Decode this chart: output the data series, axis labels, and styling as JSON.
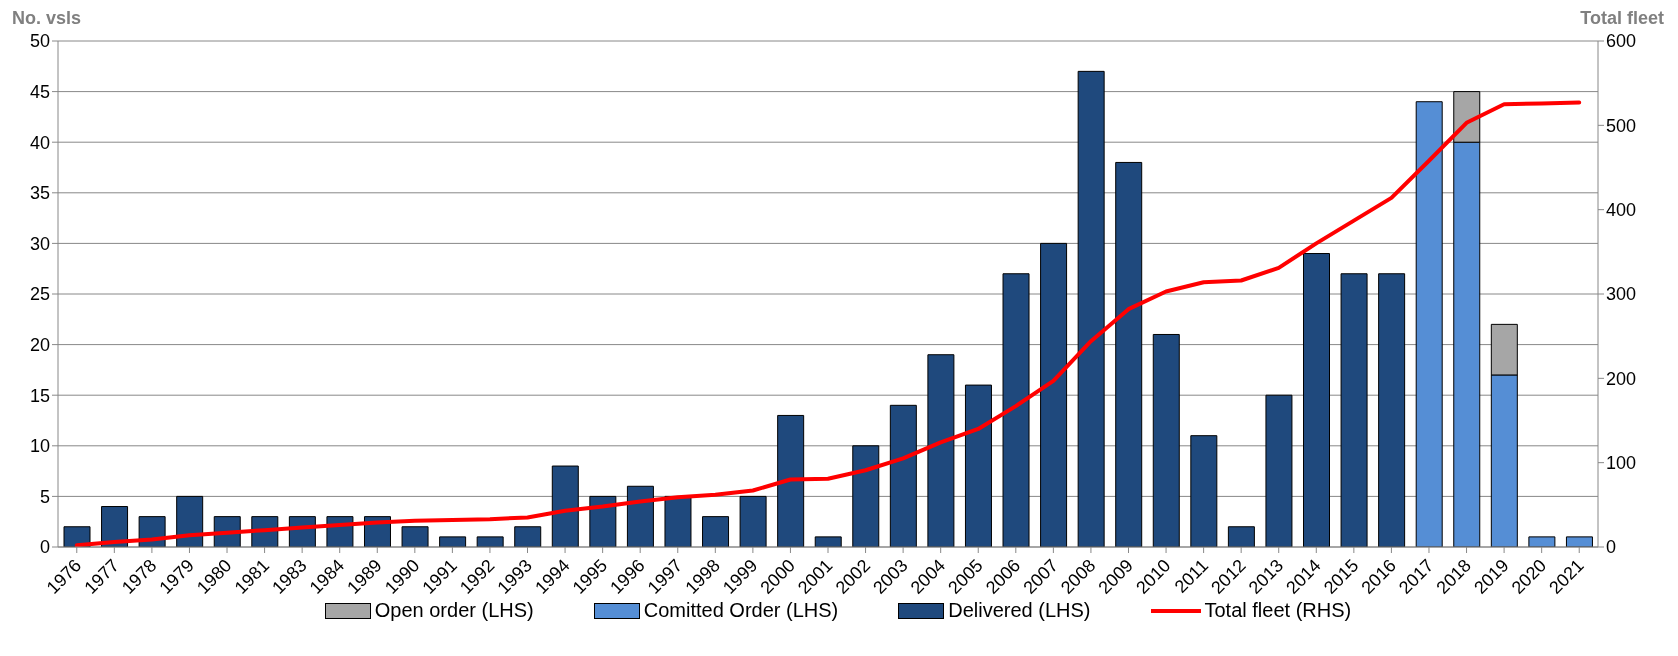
{
  "chart_data": {
    "type": "bar",
    "stacked": true,
    "ylabel": "No. vsls",
    "y2label": "Total fleet",
    "categories": [
      "1976",
      "1977",
      "1978",
      "1979",
      "1980",
      "1981",
      "1983",
      "1984",
      "1989",
      "1990",
      "1991",
      "1992",
      "1993",
      "1994",
      "1995",
      "1996",
      "1997",
      "1998",
      "1999",
      "2000",
      "2001",
      "2002",
      "2003",
      "2004",
      "2005",
      "2006",
      "2007",
      "2008",
      "2009",
      "2010",
      "2011",
      "2012",
      "2013",
      "2014",
      "2015",
      "2016",
      "2017",
      "2018",
      "2019",
      "2020",
      "2021"
    ],
    "series": [
      {
        "name": "Delivered (LHS)",
        "color": "#1f497d",
        "values": [
          2,
          4,
          3,
          5,
          3,
          3,
          3,
          3,
          3,
          2,
          1,
          1,
          2,
          8,
          5,
          6,
          5,
          3,
          5,
          13,
          1,
          10,
          14,
          19,
          16,
          27,
          30,
          47,
          38,
          21,
          11,
          2,
          15,
          29,
          27,
          27,
          null,
          null,
          null,
          null,
          null
        ]
      },
      {
        "name": "Comitted Order (LHS)",
        "color": "#558ed5",
        "values": [
          null,
          null,
          null,
          null,
          null,
          null,
          null,
          null,
          null,
          null,
          null,
          null,
          null,
          null,
          null,
          null,
          null,
          null,
          null,
          null,
          null,
          null,
          null,
          null,
          null,
          null,
          null,
          null,
          null,
          null,
          null,
          null,
          null,
          null,
          null,
          null,
          44,
          40,
          17,
          1,
          1
        ]
      },
      {
        "name": "Open order (LHS)",
        "color": "#a6a6a6",
        "values": [
          null,
          null,
          null,
          null,
          null,
          null,
          null,
          null,
          null,
          null,
          null,
          null,
          null,
          null,
          null,
          null,
          null,
          null,
          null,
          null,
          null,
          null,
          null,
          null,
          null,
          null,
          null,
          null,
          null,
          null,
          null,
          null,
          null,
          null,
          null,
          null,
          null,
          5,
          5,
          null,
          null
        ]
      },
      {
        "name": "Total fleet  (RHS)",
        "type": "line",
        "axis": "y2",
        "color": "#ff0000",
        "values": [
          2,
          6,
          9,
          14,
          17,
          20,
          23,
          26,
          29,
          31,
          32,
          33,
          35,
          43,
          48,
          54,
          59,
          62,
          67,
          80,
          81,
          91,
          105,
          124,
          140,
          167,
          197,
          244,
          282,
          303,
          314,
          316,
          331,
          360,
          387,
          414,
          458,
          503,
          525,
          526,
          527
        ]
      }
    ],
    "ylim": [
      0,
      50
    ],
    "yticks": [
      0,
      5,
      10,
      15,
      20,
      25,
      30,
      35,
      40,
      45,
      50
    ],
    "y2lim": [
      0,
      600
    ],
    "y2ticks": [
      0,
      100,
      200,
      300,
      400,
      500,
      600
    ],
    "grid": "y",
    "legend": "bottom",
    "marker": "none",
    "line_style": "solid"
  }
}
